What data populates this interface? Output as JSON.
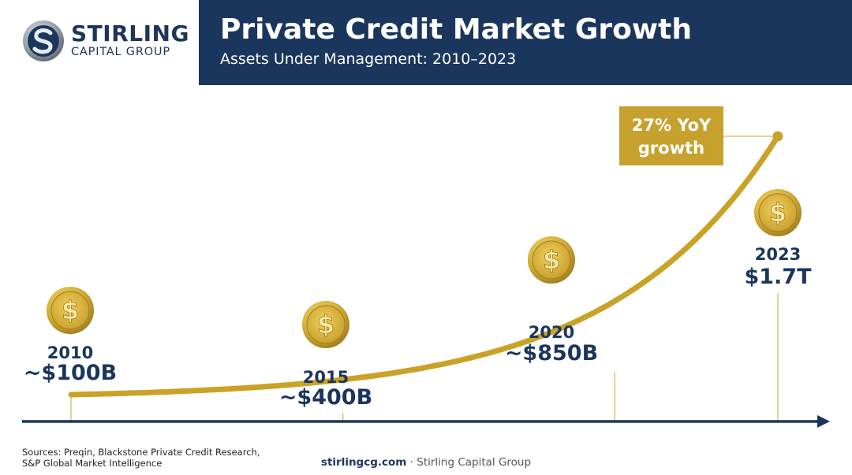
{
  "brand": {
    "name": "STIRLING",
    "subname": "CAPITAL GROUP",
    "logo_icon": "stirling-s-logo-icon"
  },
  "header": {
    "title": "Private Credit Market Growth",
    "subtitle": "Assets Under Management: 2010–2023"
  },
  "colors": {
    "navy": "#1b365d",
    "gold": "#c9a227",
    "gold_box": "#c6a12e",
    "coin": "#d9b33c"
  },
  "chart_data": {
    "type": "line",
    "title": "Private Credit Market Growth",
    "subtitle": "Assets Under Management: 2010–2023",
    "series": [
      {
        "x": [
          2010,
          2015,
          2020,
          2023
        ],
        "values": [
          100,
          400,
          850,
          1700
        ],
        "unit": "billion USD",
        "point_labels": [
          {
            "year": "2010",
            "value": "~$100B"
          },
          {
            "year": "2015",
            "value": "~$400B"
          },
          {
            "year": "2020",
            "value": "~$850B"
          },
          {
            "year": "2023",
            "value": "$1.7T"
          }
        ]
      }
    ],
    "annotation": {
      "text_line1": "27% YoY",
      "text_line2": "growth",
      "at_year": "2023"
    },
    "marker_icon": "dollar-coin-icon",
    "grid": false,
    "legend": "none"
  },
  "footer": {
    "sources_line1": "Sources: Preqin, Blackstone Private Credit Research,",
    "sources_line2": "S&P Global Market Intelligence",
    "site": "stirlingcg.com",
    "site_suffix": " · Stirling Capital Group"
  }
}
